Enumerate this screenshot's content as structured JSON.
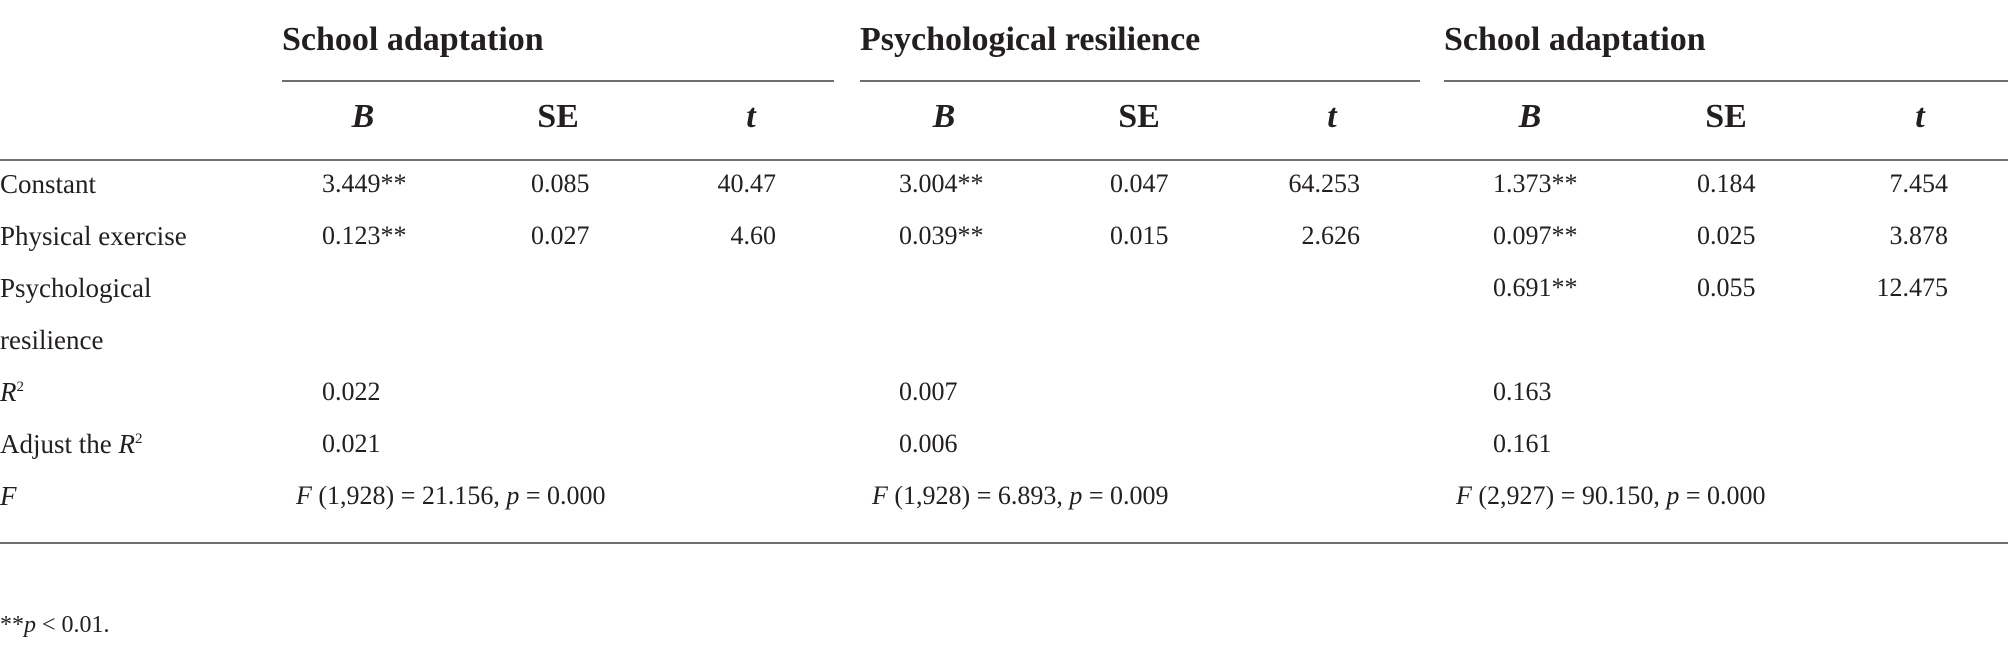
{
  "groups": [
    {
      "title": "School adaptation"
    },
    {
      "title": "Psychological resilience"
    },
    {
      "title": "School adaptation"
    }
  ],
  "col_heads": {
    "b": "B",
    "se": "SE",
    "t": "t"
  },
  "rows": {
    "constant": {
      "label": "Constant",
      "g1": {
        "b": "3.449**",
        "se": "0.085",
        "t": "40.47"
      },
      "g2": {
        "b": "3.004**",
        "se": "0.047",
        "t": "64.253"
      },
      "g3": {
        "b": "1.373**",
        "se": "0.184",
        "t": "7.454"
      }
    },
    "physical": {
      "label": "Physical exercise",
      "g1": {
        "b": "0.123**",
        "se": "0.027",
        "t": "4.60"
      },
      "g2": {
        "b": "0.039**",
        "se": "0.015",
        "t": "2.626"
      },
      "g3": {
        "b": "0.097**",
        "se": "0.025",
        "t": "3.878"
      }
    },
    "resilience": {
      "label_line1": "Psychological",
      "label_line2": "resilience",
      "g3": {
        "b": "0.691**",
        "se": "0.055",
        "t": "12.475"
      }
    },
    "r2": {
      "label_sym": "R",
      "label_sup": "2",
      "g1": "0.022",
      "g2": "0.007",
      "g3": "0.163"
    },
    "adj_r2": {
      "label_pre": "Adjust the ",
      "label_sym": "R",
      "label_sup": "2",
      "g1": "0.021",
      "g2": "0.006",
      "g3": "0.161"
    },
    "f": {
      "label": "F",
      "g1": {
        "f_sym": "F",
        "f_text": " (1,928) = 21.156, ",
        "p_sym": "p",
        "p_text": " = 0.000"
      },
      "g2": {
        "f_sym": "F",
        "f_text": " (1,928) = 6.893, ",
        "p_sym": "p",
        "p_text": " = 0.009"
      },
      "g3": {
        "f_sym": "F",
        "f_text": " (2,927) = 90.150, ",
        "p_sym": "p",
        "p_text": " = 0.000"
      }
    }
  },
  "footnote": {
    "stars": "**",
    "p_sym": "p",
    "text": " < 0.01."
  }
}
